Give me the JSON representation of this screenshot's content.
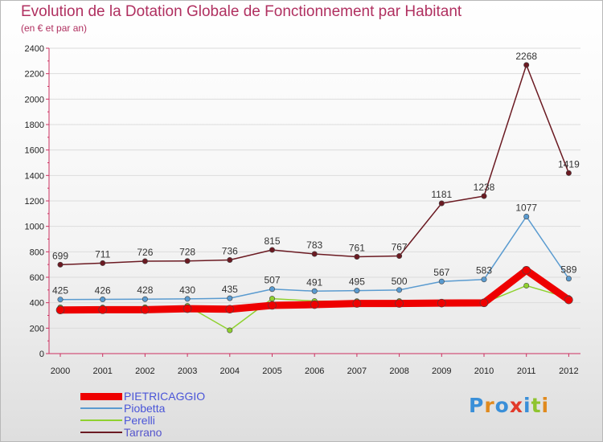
{
  "chart_data": {
    "type": "line",
    "title": "Evolution de la Dotation Globale de Fonctionnement par Habitant",
    "subtitle": "(en € et par an)",
    "xlabel": "",
    "ylabel": "",
    "ylim": [
      0,
      2400
    ],
    "yticks": [
      0,
      200,
      400,
      600,
      800,
      1000,
      1200,
      1400,
      1600,
      1800,
      2000,
      2200,
      2400
    ],
    "categories": [
      "2000",
      "2001",
      "2002",
      "2003",
      "2004",
      "2005",
      "2006",
      "2007",
      "2008",
      "2009",
      "2010",
      "2011",
      "2012"
    ],
    "grid": true,
    "legend_position": "bottom-left",
    "series": [
      {
        "name": "Tarrano",
        "color": "#6b1a22",
        "values": [
          699,
          711,
          726,
          728,
          736,
          815,
          783,
          761,
          767,
          1181,
          1238,
          2268,
          1419
        ],
        "labels": true
      },
      {
        "name": "Piobetta",
        "color": "#5a9bd0",
        "values": [
          425,
          426,
          428,
          430,
          435,
          507,
          491,
          495,
          500,
          567,
          583,
          1077,
          589
        ],
        "labels": true
      },
      {
        "name": "Perelli",
        "color": "#8fd12f",
        "values": [
          363,
          362,
          364,
          375,
          183,
          432,
          413,
          412,
          413,
          403,
          398,
          534,
          437
        ],
        "labels": false
      },
      {
        "name": "PIETRICAGGIO",
        "color": "#ee0000",
        "values": [
          343,
          345,
          345,
          353,
          349,
          379,
          385,
          394,
          394,
          397,
          399,
          655,
          422
        ],
        "labels": false
      }
    ],
    "legend_order": [
      "PIETRICAGGIO",
      "Piobetta",
      "Perelli",
      "Tarrano"
    ]
  },
  "logo": {
    "text": "Proxiti"
  }
}
